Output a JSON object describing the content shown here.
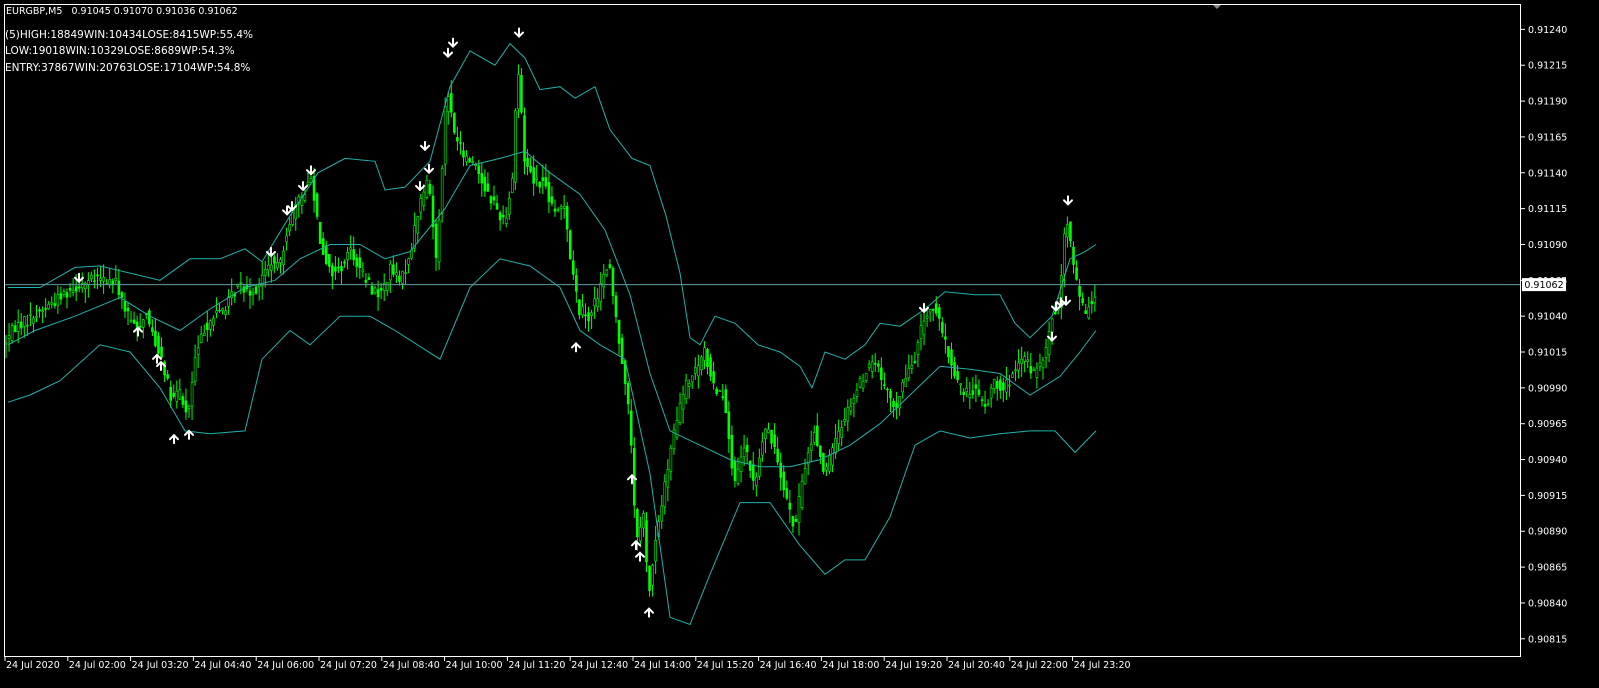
{
  "header": {
    "symbol": "EURGBP,M5",
    "ohlc": "0.91045 0.91070 0.91036 0.91062"
  },
  "stats": [
    "(5)HIGH:18849WIN:10434LOSE:8415WP:55.4%",
    "LOW:19018WIN:10329LOSE:8689WP:54.3%",
    "ENTRY:37867WIN:20763LOSE:17104WP:54.8%"
  ],
  "colors": {
    "background": "#000000",
    "frame": "#ffffff",
    "candle": "#00ff00",
    "band": "#20b2aa",
    "current_line": "#5f9ea0",
    "arrow": "#ffffff"
  },
  "chart_data": {
    "type": "line",
    "title": "EURGBP,M5",
    "xlabel": "",
    "ylabel": "",
    "grid": false,
    "ylim": [
      0.90803,
      0.91257
    ],
    "current_price": "0.91062",
    "y_ticks": [
      "0.91240",
      "0.91215",
      "0.91190",
      "0.91165",
      "0.91140",
      "0.91115",
      "0.91090",
      "0.91065",
      "0.91040",
      "0.91015",
      "0.90990",
      "0.90965",
      "0.90940",
      "0.90915",
      "0.90890",
      "0.90865",
      "0.90840",
      "0.90815"
    ],
    "x_ticks": [
      "24 Jul 2020",
      "24 Jul 02:00",
      "24 Jul 03:20",
      "24 Jul 04:40",
      "24 Jul 06:00",
      "24 Jul 07:20",
      "24 Jul 08:40",
      "24 Jul 10:00",
      "24 Jul 11:20",
      "24 Jul 12:40",
      "24 Jul 14:00",
      "24 Jul 15:20",
      "24 Jul 16:40",
      "24 Jul 18:00",
      "24 Jul 19:20",
      "24 Jul 20:40",
      "24 Jul 22:00",
      "24 Jul 23:20"
    ],
    "price_path": [
      [
        0,
        0.91015
      ],
      [
        17,
        0.91033
      ],
      [
        35,
        0.9104
      ],
      [
        55,
        0.9105
      ],
      [
        70,
        0.91058
      ],
      [
        83,
        0.91063
      ],
      [
        100,
        0.91066
      ],
      [
        118,
        0.91063
      ],
      [
        128,
        0.91042
      ],
      [
        138,
        0.9103
      ],
      [
        147,
        0.91043
      ],
      [
        156,
        0.91024
      ],
      [
        164,
        0.9101
      ],
      [
        173,
        0.9098
      ],
      [
        181,
        0.90988
      ],
      [
        189,
        0.90969
      ],
      [
        197,
        0.91012
      ],
      [
        206,
        0.91032
      ],
      [
        215,
        0.9104
      ],
      [
        228,
        0.91047
      ],
      [
        240,
        0.91062
      ],
      [
        256,
        0.91057
      ],
      [
        272,
        0.91078
      ],
      [
        280,
        0.91073
      ],
      [
        290,
        0.91105
      ],
      [
        302,
        0.91122
      ],
      [
        313,
        0.91137
      ],
      [
        322,
        0.91092
      ],
      [
        332,
        0.9107
      ],
      [
        342,
        0.91073
      ],
      [
        352,
        0.91087
      ],
      [
        362,
        0.91072
      ],
      [
        372,
        0.9106
      ],
      [
        382,
        0.91055
      ],
      [
        392,
        0.91073
      ],
      [
        402,
        0.91063
      ],
      [
        412,
        0.91085
      ],
      [
        421,
        0.91118
      ],
      [
        430,
        0.91136
      ],
      [
        438,
        0.91078
      ],
      [
        448,
        0.912
      ],
      [
        456,
        0.91168
      ],
      [
        466,
        0.9115
      ],
      [
        476,
        0.91148
      ],
      [
        486,
        0.9113
      ],
      [
        496,
        0.91118
      ],
      [
        506,
        0.91105
      ],
      [
        514,
        0.91138
      ],
      [
        519,
        0.91218
      ],
      [
        526,
        0.9115
      ],
      [
        536,
        0.91135
      ],
      [
        546,
        0.91133
      ],
      [
        556,
        0.9111
      ],
      [
        566,
        0.9112
      ],
      [
        572,
        0.9108
      ],
      [
        580,
        0.91045
      ],
      [
        590,
        0.9104
      ],
      [
        600,
        0.91055
      ],
      [
        610,
        0.91078
      ],
      [
        619,
        0.9103
      ],
      [
        626,
        0.91
      ],
      [
        632,
        0.9096
      ],
      [
        638,
        0.9088
      ],
      [
        645,
        0.909
      ],
      [
        650,
        0.90845
      ],
      [
        658,
        0.90888
      ],
      [
        666,
        0.9092
      ],
      [
        676,
        0.9096
      ],
      [
        686,
        0.9099
      ],
      [
        696,
        0.91
      ],
      [
        706,
        0.91015
      ],
      [
        716,
        0.9099
      ],
      [
        726,
        0.90985
      ],
      [
        736,
        0.9092
      ],
      [
        746,
        0.9095
      ],
      [
        756,
        0.9092
      ],
      [
        766,
        0.90962
      ],
      [
        776,
        0.9095
      ],
      [
        786,
        0.9092
      ],
      [
        796,
        0.9089
      ],
      [
        806,
        0.90935
      ],
      [
        816,
        0.9096
      ],
      [
        826,
        0.9093
      ],
      [
        836,
        0.9095
      ],
      [
        846,
        0.9097
      ],
      [
        856,
        0.90985
      ],
      [
        866,
        0.91
      ],
      [
        876,
        0.9101
      ],
      [
        886,
        0.9099
      ],
      [
        896,
        0.90975
      ],
      [
        906,
        0.90995
      ],
      [
        916,
        0.9101
      ],
      [
        926,
        0.9104
      ],
      [
        936,
        0.91047
      ],
      [
        946,
        0.91022
      ],
      [
        956,
        0.91
      ],
      [
        966,
        0.90985
      ],
      [
        976,
        0.9099
      ],
      [
        986,
        0.90975
      ],
      [
        996,
        0.90995
      ],
      [
        1006,
        0.9099
      ],
      [
        1016,
        0.91
      ],
      [
        1026,
        0.9101
      ],
      [
        1036,
        0.91
      ],
      [
        1046,
        0.9101
      ],
      [
        1054,
        0.9104
      ],
      [
        1060,
        0.9105
      ],
      [
        1068,
        0.9111
      ],
      [
        1076,
        0.9107
      ],
      [
        1086,
        0.9104
      ],
      [
        1096,
        0.91055
      ]
    ],
    "band_upper": [
      [
        8,
        0.9106
      ],
      [
        40,
        0.9106
      ],
      [
        75,
        0.91074
      ],
      [
        100,
        0.91075
      ],
      [
        130,
        0.9107
      ],
      [
        160,
        0.91065
      ],
      [
        190,
        0.9108
      ],
      [
        220,
        0.9108
      ],
      [
        245,
        0.91087
      ],
      [
        262,
        0.91078
      ],
      [
        290,
        0.9111
      ],
      [
        318,
        0.9114
      ],
      [
        345,
        0.9115
      ],
      [
        375,
        0.91148
      ],
      [
        385,
        0.91128
      ],
      [
        405,
        0.9113
      ],
      [
        430,
        0.91148
      ],
      [
        450,
        0.912
      ],
      [
        470,
        0.91225
      ],
      [
        495,
        0.91215
      ],
      [
        510,
        0.9123
      ],
      [
        525,
        0.9122
      ],
      [
        540,
        0.91198
      ],
      [
        560,
        0.912
      ],
      [
        575,
        0.91192
      ],
      [
        595,
        0.912
      ],
      [
        610,
        0.9117
      ],
      [
        632,
        0.9115
      ],
      [
        650,
        0.91145
      ],
      [
        666,
        0.9111
      ],
      [
        680,
        0.9107
      ],
      [
        690,
        0.91025
      ],
      [
        700,
        0.9102
      ],
      [
        715,
        0.9104
      ],
      [
        735,
        0.91035
      ],
      [
        758,
        0.9102
      ],
      [
        780,
        0.91015
      ],
      [
        800,
        0.91005
      ],
      [
        812,
        0.9099
      ],
      [
        825,
        0.91015
      ],
      [
        845,
        0.9101
      ],
      [
        865,
        0.9102
      ],
      [
        880,
        0.91035
      ],
      [
        900,
        0.91033
      ],
      [
        925,
        0.91045
      ],
      [
        945,
        0.91057
      ],
      [
        975,
        0.91055
      ],
      [
        1000,
        0.91055
      ],
      [
        1015,
        0.91035
      ],
      [
        1030,
        0.91025
      ],
      [
        1052,
        0.9104
      ],
      [
        1070,
        0.9108
      ],
      [
        1085,
        0.91085
      ],
      [
        1096,
        0.9109
      ]
    ],
    "band_middle": [
      [
        8,
        0.9102
      ],
      [
        35,
        0.9103
      ],
      [
        75,
        0.9104
      ],
      [
        120,
        0.91053
      ],
      [
        150,
        0.9104
      ],
      [
        180,
        0.9103
      ],
      [
        210,
        0.91045
      ],
      [
        245,
        0.9106
      ],
      [
        275,
        0.91065
      ],
      [
        300,
        0.9108
      ],
      [
        330,
        0.9109
      ],
      [
        360,
        0.9109
      ],
      [
        385,
        0.9108
      ],
      [
        410,
        0.91085
      ],
      [
        445,
        0.91115
      ],
      [
        470,
        0.91145
      ],
      [
        500,
        0.9115
      ],
      [
        525,
        0.91155
      ],
      [
        550,
        0.9114
      ],
      [
        580,
        0.91125
      ],
      [
        605,
        0.911
      ],
      [
        630,
        0.91055
      ],
      [
        650,
        0.91
      ],
      [
        670,
        0.9096
      ],
      [
        700,
        0.9095
      ],
      [
        730,
        0.9094
      ],
      [
        760,
        0.90935
      ],
      [
        790,
        0.90935
      ],
      [
        820,
        0.9094
      ],
      [
        850,
        0.9095
      ],
      [
        880,
        0.90965
      ],
      [
        910,
        0.90985
      ],
      [
        940,
        0.91005
      ],
      [
        970,
        0.91003
      ],
      [
        1000,
        0.91
      ],
      [
        1030,
        0.90985
      ],
      [
        1060,
        0.90998
      ],
      [
        1080,
        0.91015
      ],
      [
        1096,
        0.9103
      ]
    ],
    "band_lower": [
      [
        8,
        0.9098
      ],
      [
        30,
        0.90985
      ],
      [
        60,
        0.90995
      ],
      [
        100,
        0.9102
      ],
      [
        130,
        0.91015
      ],
      [
        160,
        0.9099
      ],
      [
        185,
        0.9096
      ],
      [
        210,
        0.90958
      ],
      [
        245,
        0.9096
      ],
      [
        262,
        0.9101
      ],
      [
        290,
        0.9103
      ],
      [
        310,
        0.9102
      ],
      [
        340,
        0.9104
      ],
      [
        370,
        0.9104
      ],
      [
        395,
        0.9103
      ],
      [
        440,
        0.9101
      ],
      [
        470,
        0.9106
      ],
      [
        500,
        0.9108
      ],
      [
        530,
        0.91075
      ],
      [
        560,
        0.9106
      ],
      [
        580,
        0.9103
      ],
      [
        600,
        0.9102
      ],
      [
        625,
        0.9101
      ],
      [
        650,
        0.9093
      ],
      [
        670,
        0.9083
      ],
      [
        690,
        0.90825
      ],
      [
        710,
        0.9086
      ],
      [
        740,
        0.9091
      ],
      [
        770,
        0.9091
      ],
      [
        800,
        0.9088
      ],
      [
        825,
        0.9086
      ],
      [
        845,
        0.9087
      ],
      [
        865,
        0.9087
      ],
      [
        890,
        0.909
      ],
      [
        915,
        0.9095
      ],
      [
        940,
        0.9096
      ],
      [
        970,
        0.90955
      ],
      [
        1000,
        0.90958
      ],
      [
        1030,
        0.9096
      ],
      [
        1055,
        0.9096
      ],
      [
        1075,
        0.90945
      ],
      [
        1096,
        0.9096
      ]
    ],
    "high_arrows": [
      [
        79,
        0.91064
      ],
      [
        271,
        0.91082
      ],
      [
        287,
        0.91111
      ],
      [
        292,
        0.91114
      ],
      [
        303,
        0.91128
      ],
      [
        311,
        0.91139
      ],
      [
        420,
        0.91128
      ],
      [
        425,
        0.91156
      ],
      [
        429,
        0.9114
      ],
      [
        448,
        0.91221
      ],
      [
        453,
        0.91228
      ],
      [
        519,
        0.91235
      ],
      [
        924,
        0.91043
      ],
      [
        1052,
        0.91023
      ],
      [
        1056,
        0.91044
      ],
      [
        1061,
        0.91047
      ],
      [
        1066,
        0.91048
      ],
      [
        1068,
        0.91118
      ]
    ],
    "low_arrows": [
      [
        138,
        0.91032
      ],
      [
        157,
        0.91013
      ],
      [
        161,
        0.91008
      ],
      [
        174,
        0.90957
      ],
      [
        189,
        0.9096
      ],
      [
        576,
        0.91021
      ],
      [
        632,
        0.90929
      ],
      [
        636,
        0.90883
      ],
      [
        640,
        0.90875
      ],
      [
        649,
        0.90836
      ]
    ]
  }
}
